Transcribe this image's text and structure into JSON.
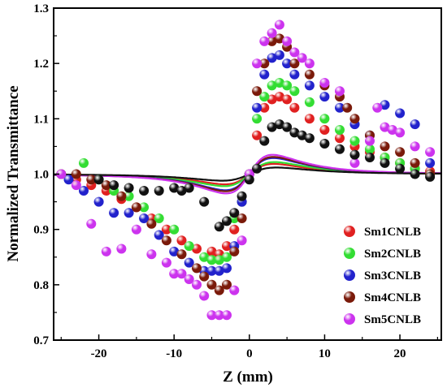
{
  "chart_data": {
    "type": "scatter",
    "xlabel": "Z (mm)",
    "ylabel": "Normalized Transmittance",
    "xlim": [
      -26,
      25.5
    ],
    "ylim": [
      0.7,
      1.3
    ],
    "xticks": [
      -20,
      -10,
      0,
      10,
      20
    ],
    "yticks": [
      0.7,
      0.8,
      0.9,
      1.0,
      1.1,
      1.2,
      1.3
    ],
    "legend_position": "bottom-right",
    "series": [
      {
        "name": "Sm1CNLB",
        "color": "#e02020",
        "fit": {
          "amp": 0.14,
          "w": 3.8
        },
        "points": [
          [
            -25,
            1.0
          ],
          [
            -23,
            0.99
          ],
          [
            -21,
            0.98
          ],
          [
            -19,
            0.97
          ],
          [
            -17,
            0.955
          ],
          [
            -15,
            0.94
          ],
          [
            -13,
            0.92
          ],
          [
            -11,
            0.9
          ],
          [
            -9,
            0.88
          ],
          [
            -7,
            0.865
          ],
          [
            -5,
            0.86
          ],
          [
            -4,
            0.855
          ],
          [
            -3,
            0.87
          ],
          [
            -2,
            0.9
          ],
          [
            -1,
            0.95
          ],
          [
            0,
            1.0
          ],
          [
            1,
            1.07
          ],
          [
            2,
            1.12
          ],
          [
            3,
            1.135
          ],
          [
            4,
            1.14
          ],
          [
            5,
            1.135
          ],
          [
            6,
            1.12
          ],
          [
            8,
            1.1
          ],
          [
            10,
            1.08
          ],
          [
            12,
            1.065
          ],
          [
            14,
            1.05
          ],
          [
            16,
            1.04
          ],
          [
            18,
            1.03
          ],
          [
            20,
            1.02
          ],
          [
            22,
            1.01
          ],
          [
            24,
            1.005
          ]
        ]
      },
      {
        "name": "Sm2CNLB",
        "color": "#33dd33",
        "fit": {
          "amp": 0.165,
          "w": 3.9
        },
        "points": [
          [
            -25,
            1.0
          ],
          [
            -22,
            1.02
          ],
          [
            -20,
            0.99
          ],
          [
            -18,
            0.97
          ],
          [
            -16,
            0.96
          ],
          [
            -14,
            0.94
          ],
          [
            -12,
            0.92
          ],
          [
            -10,
            0.9
          ],
          [
            -8,
            0.87
          ],
          [
            -6,
            0.85
          ],
          [
            -5,
            0.845
          ],
          [
            -4,
            0.845
          ],
          [
            -3,
            0.85
          ],
          [
            -2,
            0.92
          ],
          [
            -1,
            0.95
          ],
          [
            0,
            1.0
          ],
          [
            1,
            1.1
          ],
          [
            2,
            1.14
          ],
          [
            3,
            1.16
          ],
          [
            4,
            1.165
          ],
          [
            5,
            1.16
          ],
          [
            6,
            1.15
          ],
          [
            8,
            1.13
          ],
          [
            10,
            1.1
          ],
          [
            12,
            1.08
          ],
          [
            14,
            1.06
          ],
          [
            16,
            1.045
          ],
          [
            18,
            1.03
          ],
          [
            20,
            1.02
          ],
          [
            22,
            1.01
          ],
          [
            24,
            1.0
          ]
        ]
      },
      {
        "name": "Sm3CNLB",
        "color": "#2222cc",
        "fit": {
          "amp": 0.22,
          "w": 3.7
        },
        "points": [
          [
            -24,
            0.99
          ],
          [
            -22,
            0.97
          ],
          [
            -20,
            0.95
          ],
          [
            -18,
            0.93
          ],
          [
            -16,
            0.93
          ],
          [
            -14,
            0.92
          ],
          [
            -12,
            0.89
          ],
          [
            -10,
            0.86
          ],
          [
            -8,
            0.84
          ],
          [
            -6,
            0.825
          ],
          [
            -5,
            0.825
          ],
          [
            -4,
            0.825
          ],
          [
            -3,
            0.83
          ],
          [
            -2,
            0.87
          ],
          [
            -1,
            0.95
          ],
          [
            0,
            1.0
          ],
          [
            1,
            1.12
          ],
          [
            2,
            1.18
          ],
          [
            3,
            1.21
          ],
          [
            4,
            1.215
          ],
          [
            5,
            1.2
          ],
          [
            6,
            1.18
          ],
          [
            8,
            1.16
          ],
          [
            10,
            1.14
          ],
          [
            12,
            1.12
          ],
          [
            14,
            1.09
          ],
          [
            16,
            1.07
          ],
          [
            18,
            1.125
          ],
          [
            20,
            1.11
          ],
          [
            22,
            1.09
          ],
          [
            24,
            1.02
          ]
        ]
      },
      {
        "name": "Sm4CNLB",
        "color": "#7a1a0a",
        "fit": {
          "amp": 0.235,
          "w": 3.7
        },
        "points": [
          [
            -25,
            1.0
          ],
          [
            -23,
            1.0
          ],
          [
            -21,
            0.99
          ],
          [
            -19,
            0.98
          ],
          [
            -17,
            0.96
          ],
          [
            -15,
            0.94
          ],
          [
            -13,
            0.91
          ],
          [
            -11,
            0.88
          ],
          [
            -9,
            0.855
          ],
          [
            -7,
            0.83
          ],
          [
            -6,
            0.815
          ],
          [
            -5,
            0.8
          ],
          [
            -4,
            0.79
          ],
          [
            -3,
            0.8
          ],
          [
            -2,
            0.86
          ],
          [
            -1,
            0.92
          ],
          [
            0,
            1.0
          ],
          [
            1,
            1.15
          ],
          [
            2,
            1.2
          ],
          [
            3,
            1.24
          ],
          [
            4,
            1.245
          ],
          [
            5,
            1.23
          ],
          [
            6,
            1.2
          ],
          [
            8,
            1.18
          ],
          [
            10,
            1.16
          ],
          [
            12,
            1.14
          ],
          [
            13,
            1.12
          ],
          [
            14,
            1.1
          ],
          [
            16,
            1.07
          ],
          [
            18,
            1.05
          ],
          [
            20,
            1.04
          ],
          [
            22,
            1.02
          ],
          [
            24,
            1.0
          ]
        ]
      },
      {
        "name": "Sm5CNLB",
        "color": "#cc33ee",
        "fit": {
          "amp": 0.265,
          "w": 3.6
        },
        "points": [
          [
            -25,
            1.0
          ],
          [
            -23,
            0.98
          ],
          [
            -21,
            0.91
          ],
          [
            -19,
            0.86
          ],
          [
            -17,
            0.865
          ],
          [
            -15,
            0.9
          ],
          [
            -13,
            0.855
          ],
          [
            -11,
            0.84
          ],
          [
            -10,
            0.82
          ],
          [
            -9,
            0.82
          ],
          [
            -8,
            0.81
          ],
          [
            -7,
            0.8
          ],
          [
            -6,
            0.78
          ],
          [
            -5,
            0.745
          ],
          [
            -4,
            0.745
          ],
          [
            -3,
            0.745
          ],
          [
            -2,
            0.79
          ],
          [
            -1,
            0.88
          ],
          [
            0,
            1.0
          ],
          [
            1,
            1.2
          ],
          [
            2,
            1.24
          ],
          [
            3,
            1.255
          ],
          [
            4,
            1.27
          ],
          [
            5,
            1.24
          ],
          [
            6,
            1.22
          ],
          [
            7,
            1.21
          ],
          [
            8,
            1.2
          ],
          [
            10,
            1.165
          ],
          [
            12,
            1.15
          ],
          [
            14,
            1.02
          ],
          [
            16,
            1.06
          ],
          [
            17,
            1.12
          ],
          [
            18,
            1.085
          ],
          [
            19,
            1.08
          ],
          [
            20,
            1.075
          ],
          [
            22,
            1.05
          ],
          [
            24,
            1.04
          ]
        ]
      },
      {
        "name": "",
        "color": "#111111",
        "fit": {
          "amp": 0.09,
          "w": 4.2
        },
        "points": [
          [
            -20,
            0.99
          ],
          [
            -18,
            0.98
          ],
          [
            -16,
            0.975
          ],
          [
            -14,
            0.97
          ],
          [
            -12,
            0.97
          ],
          [
            -10,
            0.975
          ],
          [
            -9,
            0.97
          ],
          [
            -8,
            0.975
          ],
          [
            -6,
            0.95
          ],
          [
            -4,
            0.905
          ],
          [
            -3,
            0.915
          ],
          [
            -2,
            0.93
          ],
          [
            -1,
            0.96
          ],
          [
            0,
            0.99
          ],
          [
            1,
            1.01
          ],
          [
            2,
            1.06
          ],
          [
            3,
            1.085
          ],
          [
            4,
            1.09
          ],
          [
            5,
            1.085
          ],
          [
            6,
            1.075
          ],
          [
            7,
            1.07
          ],
          [
            8,
            1.065
          ],
          [
            10,
            1.055
          ],
          [
            12,
            1.045
          ],
          [
            14,
            1.035
          ],
          [
            16,
            1.03
          ],
          [
            18,
            1.02
          ],
          [
            20,
            1.01
          ],
          [
            22,
            1.0
          ],
          [
            24,
            0.995
          ]
        ]
      }
    ]
  }
}
